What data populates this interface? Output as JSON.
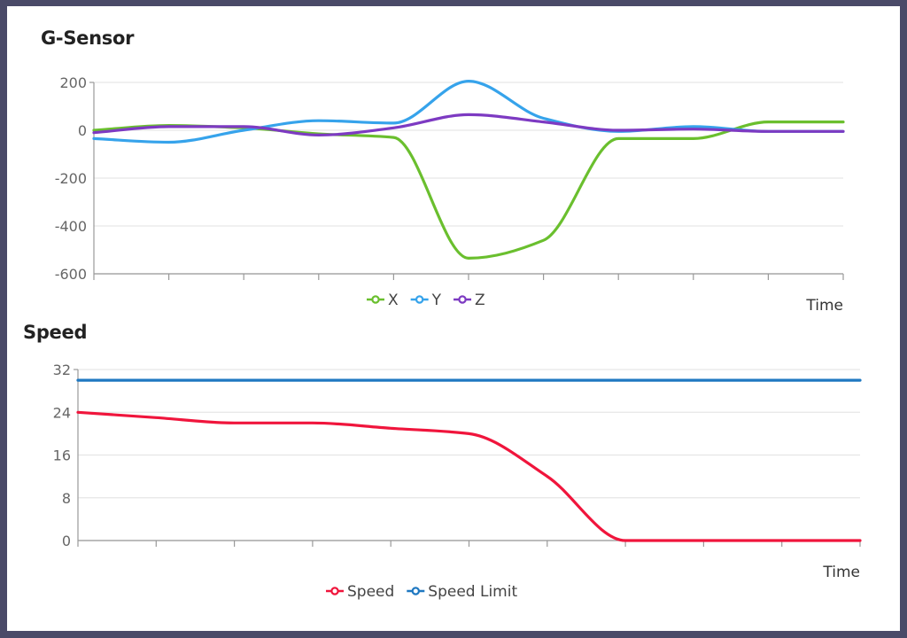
{
  "chart_data": [
    {
      "type": "line",
      "title": "G-Sensor",
      "xlabel": "Time",
      "ylabel": "",
      "ylim": [
        -600,
        200
      ],
      "yticks": [
        200,
        0,
        -200,
        -400,
        -600
      ],
      "x": [
        0,
        1,
        2,
        3,
        4,
        5,
        6,
        7,
        8,
        9,
        10
      ],
      "grid": true,
      "legend": "bottom-center",
      "series": [
        {
          "name": "X",
          "color": "#6abf2e",
          "values": [
            0,
            20,
            10,
            -15,
            -30,
            -535,
            -460,
            -35,
            -35,
            35,
            35
          ]
        },
        {
          "name": "Y",
          "color": "#36a3eb",
          "values": [
            -35,
            -50,
            0,
            40,
            30,
            205,
            50,
            -5,
            15,
            -5,
            -5
          ]
        },
        {
          "name": "Z",
          "color": "#7d3ac2",
          "values": [
            -10,
            15,
            15,
            -20,
            10,
            65,
            35,
            0,
            5,
            -5,
            -5
          ]
        }
      ]
    },
    {
      "type": "line",
      "title": "Speed",
      "xlabel": "Time",
      "ylabel": "",
      "ylim": [
        0,
        32
      ],
      "yticks": [
        32,
        24,
        16,
        8,
        0
      ],
      "x": [
        0,
        1,
        2,
        3,
        4,
        5,
        6,
        7,
        8,
        9,
        10
      ],
      "grid": true,
      "legend": "bottom-center",
      "series": [
        {
          "name": "Speed",
          "color": "#f0153c",
          "values": [
            24,
            23,
            22,
            22,
            21,
            20,
            12,
            0,
            0,
            0,
            0
          ]
        },
        {
          "name": "Speed Limit",
          "color": "#1f78c1",
          "values": [
            30,
            30,
            30,
            30,
            30,
            30,
            30,
            30,
            30,
            30,
            30
          ]
        }
      ]
    }
  ]
}
